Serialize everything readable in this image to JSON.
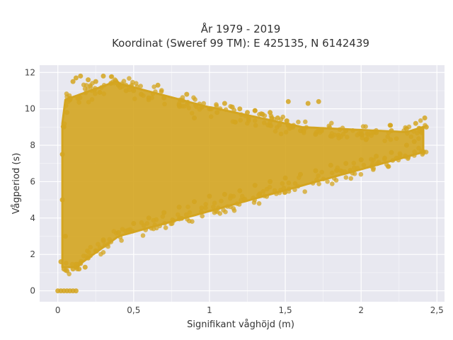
{
  "chart_data": {
    "type": "scatter",
    "title": [
      "År 1979 - 2019",
      "Koordinat (Sweref 99 TM): E 425135, N 6142439"
    ],
    "xlabel": "Signifikant våghöjd (m)",
    "ylabel": "Vågperiod (s)",
    "xlim": [
      -0.12,
      2.55
    ],
    "ylim": [
      -0.6,
      12.4
    ],
    "x_ticks": [
      0,
      0.5,
      1,
      1.5,
      2,
      2.5
    ],
    "x_tick_labels": [
      "0",
      "0,5",
      "1",
      "1,5",
      "2",
      "2,5"
    ],
    "y_ticks": [
      0,
      2,
      4,
      6,
      8,
      10,
      12
    ],
    "y_tick_labels": [
      "0",
      "2",
      "4",
      "6",
      "8",
      "10",
      "12"
    ],
    "grid": true,
    "legend": "none",
    "marker_color": "#D4A520",
    "background_color": "#E8E8F0",
    "points": [
      [
        0.0,
        0
      ],
      [
        0.02,
        0
      ],
      [
        0.04,
        0
      ],
      [
        0.06,
        0
      ],
      [
        0.08,
        0
      ],
      [
        0.1,
        0
      ],
      [
        0.12,
        0
      ],
      [
        0.02,
        1.6
      ],
      [
        0.04,
        1.2
      ],
      [
        0.06,
        1.1
      ],
      [
        0.1,
        1.2
      ],
      [
        0.14,
        1.2
      ],
      [
        0.18,
        1.3
      ],
      [
        0.03,
        5.0
      ],
      [
        0.03,
        7.5
      ],
      [
        0.04,
        9.0
      ],
      [
        0.05,
        3.0
      ],
      [
        0.06,
        9.8
      ],
      [
        0.08,
        10.5
      ],
      [
        0.1,
        11.5
      ],
      [
        0.12,
        11.7
      ],
      [
        0.15,
        11.8
      ],
      [
        0.2,
        11.6
      ],
      [
        0.25,
        11.5
      ],
      [
        0.3,
        11.8
      ],
      [
        0.35,
        11.4
      ],
      [
        0.4,
        11.3
      ],
      [
        0.45,
        11.0
      ],
      [
        0.5,
        11.0
      ],
      [
        0.55,
        10.8
      ],
      [
        0.6,
        10.6
      ],
      [
        0.66,
        11.3
      ],
      [
        0.7,
        10.6
      ],
      [
        0.8,
        10.2
      ],
      [
        0.85,
        10.8
      ],
      [
        0.9,
        9.5
      ],
      [
        0.95,
        10.1
      ],
      [
        1.0,
        10.0
      ],
      [
        1.05,
        9.8
      ],
      [
        1.1,
        10.3
      ],
      [
        1.15,
        10.1
      ],
      [
        1.2,
        10.0
      ],
      [
        1.25,
        9.8
      ],
      [
        1.3,
        9.9
      ],
      [
        1.35,
        9.7
      ],
      [
        1.4,
        9.8
      ],
      [
        1.45,
        9.5
      ],
      [
        1.52,
        10.4
      ],
      [
        1.65,
        10.3
      ],
      [
        1.72,
        10.4
      ],
      [
        1.55,
        9.0
      ],
      [
        1.6,
        8.8
      ],
      [
        1.7,
        8.6
      ],
      [
        1.8,
        8.5
      ],
      [
        1.9,
        8.8
      ],
      [
        2.0,
        8.6
      ],
      [
        2.1,
        8.7
      ],
      [
        2.2,
        8.8
      ],
      [
        2.3,
        8.9
      ],
      [
        2.36,
        9.2
      ],
      [
        2.42,
        9.5
      ],
      [
        2.43,
        9.0
      ],
      [
        2.4,
        8.7
      ],
      [
        2.35,
        8.2
      ],
      [
        2.3,
        8.0
      ],
      [
        2.2,
        7.6
      ],
      [
        2.1,
        7.4
      ],
      [
        2.0,
        7.2
      ],
      [
        1.9,
        7.0
      ],
      [
        1.8,
        6.9
      ],
      [
        1.7,
        6.6
      ],
      [
        1.6,
        6.4
      ],
      [
        1.5,
        6.2
      ],
      [
        1.4,
        6.0
      ],
      [
        1.3,
        5.8
      ],
      [
        1.2,
        5.5
      ],
      [
        1.1,
        5.3
      ],
      [
        1.0,
        5.2
      ],
      [
        0.9,
        4.9
      ],
      [
        0.8,
        4.6
      ],
      [
        0.7,
        4.3
      ],
      [
        0.6,
        4.0
      ],
      [
        0.5,
        3.7
      ],
      [
        0.4,
        3.2
      ],
      [
        0.3,
        2.8
      ],
      [
        0.25,
        2.2
      ],
      [
        0.2,
        1.8
      ],
      [
        0.15,
        1.5
      ],
      [
        0.12,
        1.3
      ]
    ]
  }
}
